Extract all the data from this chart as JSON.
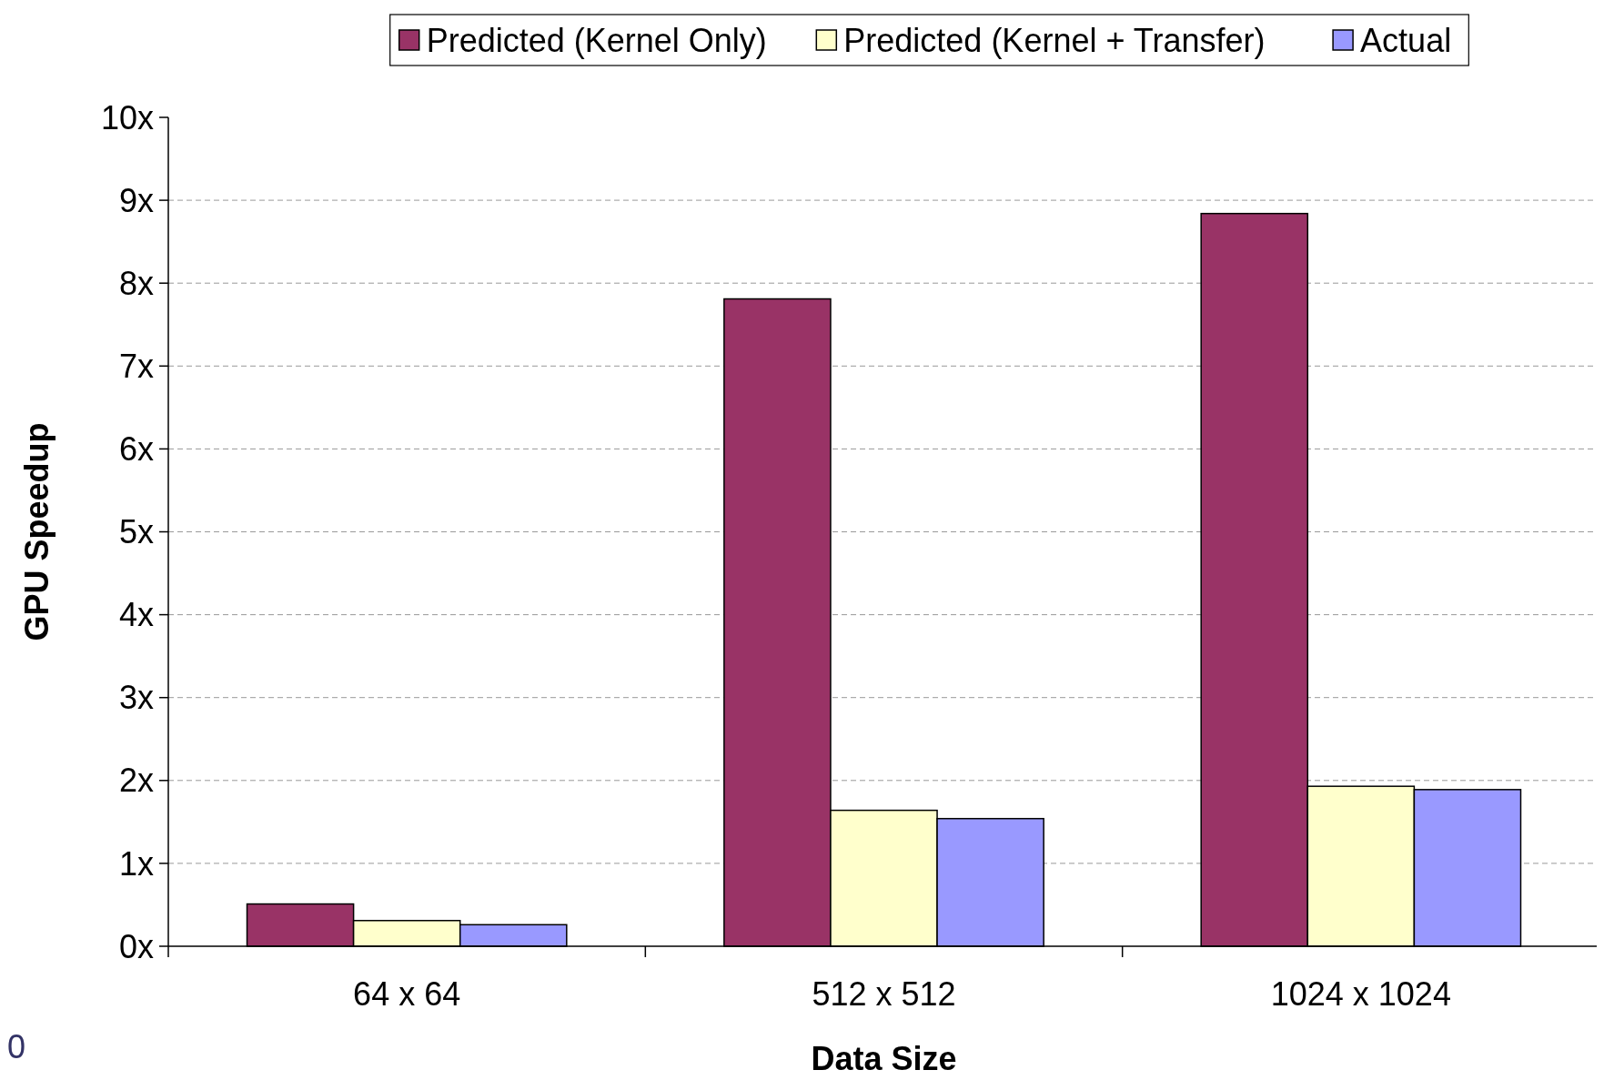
{
  "chart_data": {
    "type": "bar",
    "xlabel": "Data Size",
    "ylabel": "GPU Speedup",
    "categories": [
      "64 x 64",
      "512 x 512",
      "1024 x 1024"
    ],
    "series": [
      {
        "name": "Predicted (Kernel Only)",
        "color": "#993366",
        "values": [
          0.51,
          7.81,
          8.84
        ]
      },
      {
        "name": "Predicted (Kernel + Transfer)",
        "color": "#ffffcc",
        "values": [
          0.31,
          1.64,
          1.93
        ]
      },
      {
        "name": "Actual",
        "color": "#9999ff",
        "values": [
          0.26,
          1.54,
          1.89
        ]
      }
    ],
    "ylim": [
      0,
      10
    ],
    "yticks": [
      {
        "value": 0,
        "label": "0x"
      },
      {
        "value": 1,
        "label": "1x"
      },
      {
        "value": 2,
        "label": "2x"
      },
      {
        "value": 3,
        "label": "3x"
      },
      {
        "value": 4,
        "label": "4x"
      },
      {
        "value": 5,
        "label": "5x"
      },
      {
        "value": 6,
        "label": "6x"
      },
      {
        "value": 7,
        "label": "7x"
      },
      {
        "value": 8,
        "label": "8x"
      },
      {
        "value": 9,
        "label": "9x"
      },
      {
        "value": 10,
        "label": "10x"
      }
    ],
    "grid": "y",
    "legend": "top",
    "annotations": [
      "0"
    ]
  }
}
